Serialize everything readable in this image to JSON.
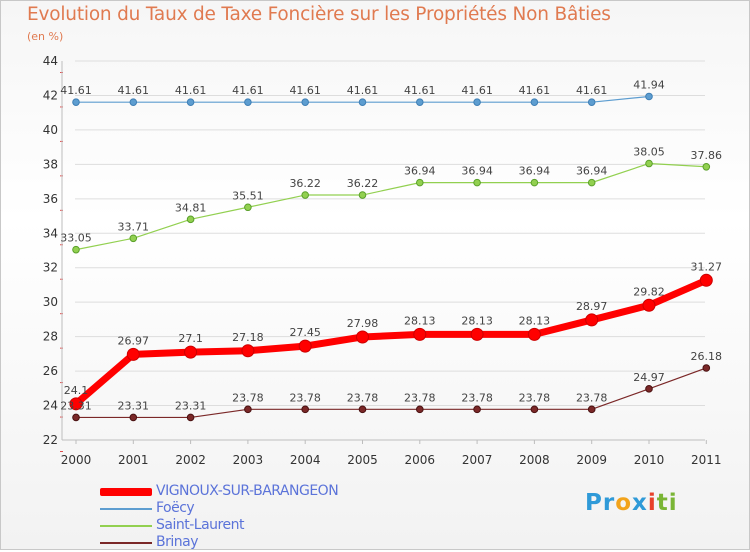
{
  "title": "Evolution du Taux de Taxe Foncière sur les Propriétés Non Bâties",
  "subtitle": "(en %)",
  "logo": {
    "parts": [
      "Pr",
      "o",
      "x",
      "i",
      "ti"
    ]
  },
  "chart_data": {
    "type": "line",
    "title": "Evolution du Taux de Taxe Foncière sur les Propriétés Non Bâties",
    "ylabel": "(en %)",
    "xlabel": "",
    "ylim": [
      22,
      44
    ],
    "yticks": [
      22,
      24,
      26,
      28,
      30,
      32,
      34,
      36,
      38,
      40,
      42,
      44
    ],
    "categories": [
      "2000",
      "2001",
      "2002",
      "2003",
      "2004",
      "2005",
      "2006",
      "2007",
      "2008",
      "2009",
      "2010",
      "2011"
    ],
    "grid": "horizontal",
    "legend_position": "bottom-left",
    "series": [
      {
        "name": "VIGNOUX-SUR-BARANGEON",
        "color": "#ff0000",
        "width": "thick",
        "key": "vignoux",
        "values": [
          24.1,
          26.97,
          27.1,
          27.18,
          27.45,
          27.98,
          28.13,
          28.13,
          28.13,
          28.97,
          29.82,
          31.27
        ],
        "labels": [
          "24.1",
          "26.97",
          "27.1",
          "27.18",
          "27.45",
          "27.98",
          "28.13",
          "28.13",
          "28.13",
          "28.97",
          "29.82",
          "31.27"
        ]
      },
      {
        "name": "Foëcy",
        "color": "#5d9dd0",
        "width": "thin",
        "key": "foecy",
        "values": [
          41.61,
          41.61,
          41.61,
          41.61,
          41.61,
          41.61,
          41.61,
          41.61,
          41.61,
          41.61,
          41.94,
          null
        ],
        "labels": [
          "41.61",
          "41.61",
          "41.61",
          "41.61",
          "41.61",
          "41.61",
          "41.61",
          "41.61",
          "41.61",
          "41.61",
          "41.94",
          null
        ]
      },
      {
        "name": "Saint-Laurent",
        "color": "#92d050",
        "width": "thin",
        "key": "saint-laurent",
        "values": [
          33.05,
          33.71,
          34.81,
          35.51,
          36.22,
          36.22,
          36.94,
          36.94,
          36.94,
          36.94,
          38.05,
          37.86
        ],
        "labels": [
          "33.05",
          "33.71",
          "34.81",
          "35.51",
          "36.22",
          "36.22",
          "36.94",
          "36.94",
          "36.94",
          "36.94",
          "38.05",
          "37.86"
        ]
      },
      {
        "name": "Brinay",
        "color": "#7b2828",
        "width": "thin",
        "key": "brinay",
        "values": [
          23.31,
          23.31,
          23.31,
          23.78,
          23.78,
          23.78,
          23.78,
          23.78,
          23.78,
          23.78,
          24.97,
          26.18
        ],
        "labels": [
          "23.31",
          "23.31",
          "23.31",
          "23.78",
          "23.78",
          "23.78",
          "23.78",
          "23.78",
          "23.78",
          "23.78",
          "24.97",
          "26.18"
        ]
      }
    ]
  }
}
